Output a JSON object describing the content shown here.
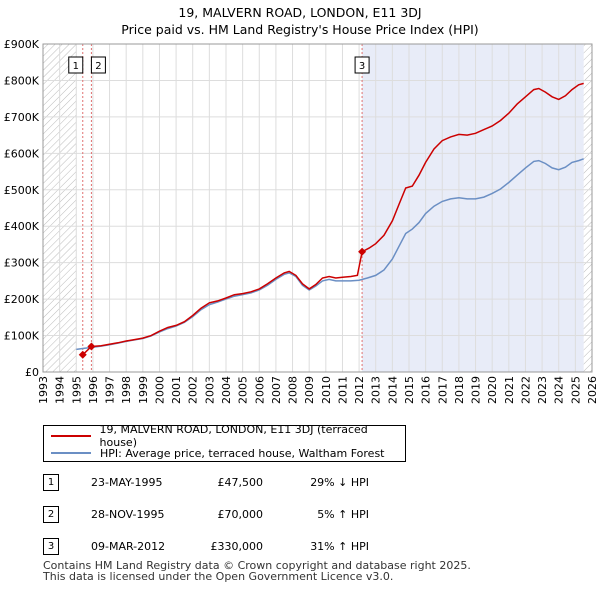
{
  "title_line1": "19, MALVERN ROAD, LONDON, E11 3DJ",
  "title_line2": "Price paid vs. HM Land Registry's House Price Index (HPI)",
  "colors": {
    "property": "#cc0000",
    "hpi": "#6b8fc4",
    "shade": "#e8ecf8",
    "hatch": "#bbbbbb",
    "marker_line": "#e07070"
  },
  "chart_data": {
    "type": "line",
    "xlim": [
      1993,
      2026
    ],
    "ylim": [
      0,
      900000
    ],
    "y_ticks": [
      0,
      100000,
      200000,
      300000,
      400000,
      500000,
      600000,
      700000,
      800000,
      900000
    ],
    "y_tick_labels": [
      "£0",
      "£100K",
      "£200K",
      "£300K",
      "£400K",
      "£500K",
      "£600K",
      "£700K",
      "£800K",
      "£900K"
    ],
    "x_ticks": [
      1993,
      1994,
      1995,
      1996,
      1997,
      1998,
      1999,
      2000,
      2001,
      2002,
      2003,
      2004,
      2005,
      2006,
      2007,
      2008,
      2009,
      2010,
      2011,
      2012,
      2013,
      2014,
      2015,
      2016,
      2017,
      2018,
      2019,
      2020,
      2021,
      2022,
      2023,
      2024,
      2025,
      2026
    ],
    "x_tick_labels": [
      "1993",
      "1994",
      "1995",
      "1996",
      "1997",
      "1998",
      "1999",
      "2000",
      "2001",
      "2002",
      "2003",
      "2004",
      "2005",
      "2006",
      "2007",
      "2008",
      "2009",
      "2010",
      "2011",
      "2012",
      "2013",
      "2014",
      "2015",
      "2016",
      "2017",
      "2018",
      "2019",
      "2020",
      "2021",
      "2022",
      "2023",
      "2024",
      "2025",
      "2026"
    ],
    "hatch_before": 1995.0,
    "hatch_after": 2025.5,
    "shaded_from": 2012.18,
    "series": [
      {
        "name": "19, MALVERN ROAD, LONDON, E11 3DJ (terraced house)",
        "points": [
          [
            1995.39,
            47500
          ],
          [
            1995.91,
            70000
          ],
          [
            1996.5,
            72000
          ],
          [
            1997,
            76000
          ],
          [
            1997.5,
            80000
          ],
          [
            1998,
            85000
          ],
          [
            1998.5,
            89000
          ],
          [
            1999,
            93000
          ],
          [
            1999.5,
            100000
          ],
          [
            2000,
            112000
          ],
          [
            2000.5,
            122000
          ],
          [
            2001,
            128000
          ],
          [
            2001.5,
            138000
          ],
          [
            2002,
            155000
          ],
          [
            2002.5,
            175000
          ],
          [
            2003,
            190000
          ],
          [
            2003.5,
            195000
          ],
          [
            2004,
            203000
          ],
          [
            2004.5,
            212000
          ],
          [
            2005,
            215000
          ],
          [
            2005.5,
            220000
          ],
          [
            2006,
            228000
          ],
          [
            2006.5,
            242000
          ],
          [
            2007,
            258000
          ],
          [
            2007.5,
            272000
          ],
          [
            2007.8,
            276000
          ],
          [
            2008.2,
            265000
          ],
          [
            2008.6,
            242000
          ],
          [
            2009,
            228000
          ],
          [
            2009.4,
            240000
          ],
          [
            2009.8,
            258000
          ],
          [
            2010.2,
            262000
          ],
          [
            2010.6,
            258000
          ],
          [
            2011,
            260000
          ],
          [
            2011.5,
            262000
          ],
          [
            2011.9,
            265000
          ],
          [
            2012.18,
            330000
          ],
          [
            2012.6,
            340000
          ],
          [
            2013,
            352000
          ],
          [
            2013.5,
            375000
          ],
          [
            2014,
            415000
          ],
          [
            2014.4,
            460000
          ],
          [
            2014.8,
            505000
          ],
          [
            2015.2,
            510000
          ],
          [
            2015.6,
            540000
          ],
          [
            2016,
            575000
          ],
          [
            2016.5,
            612000
          ],
          [
            2017,
            635000
          ],
          [
            2017.5,
            645000
          ],
          [
            2018,
            652000
          ],
          [
            2018.5,
            650000
          ],
          [
            2019,
            655000
          ],
          [
            2019.5,
            665000
          ],
          [
            2020,
            675000
          ],
          [
            2020.5,
            690000
          ],
          [
            2021,
            710000
          ],
          [
            2021.5,
            735000
          ],
          [
            2022,
            755000
          ],
          [
            2022.5,
            775000
          ],
          [
            2022.8,
            778000
          ],
          [
            2023.2,
            768000
          ],
          [
            2023.6,
            755000
          ],
          [
            2024,
            748000
          ],
          [
            2024.4,
            758000
          ],
          [
            2024.8,
            775000
          ],
          [
            2025.2,
            788000
          ],
          [
            2025.5,
            792000
          ]
        ]
      },
      {
        "name": "HPI: Average price, terraced house, Waltham Forest",
        "points": [
          [
            1995,
            62000
          ],
          [
            1995.5,
            65000
          ],
          [
            1996,
            68000
          ],
          [
            1996.5,
            71000
          ],
          [
            1997,
            75000
          ],
          [
            1997.5,
            79000
          ],
          [
            1998,
            84000
          ],
          [
            1998.5,
            88000
          ],
          [
            1999,
            92000
          ],
          [
            1999.5,
            99000
          ],
          [
            2000,
            110000
          ],
          [
            2000.5,
            119000
          ],
          [
            2001,
            126000
          ],
          [
            2001.5,
            136000
          ],
          [
            2002,
            152000
          ],
          [
            2002.5,
            171000
          ],
          [
            2003,
            185000
          ],
          [
            2003.5,
            192000
          ],
          [
            2004,
            200000
          ],
          [
            2004.5,
            208000
          ],
          [
            2005,
            212000
          ],
          [
            2005.5,
            217000
          ],
          [
            2006,
            225000
          ],
          [
            2006.5,
            238000
          ],
          [
            2007,
            254000
          ],
          [
            2007.5,
            268000
          ],
          [
            2007.8,
            272000
          ],
          [
            2008.2,
            262000
          ],
          [
            2008.6,
            238000
          ],
          [
            2009,
            225000
          ],
          [
            2009.4,
            236000
          ],
          [
            2009.8,
            250000
          ],
          [
            2010.2,
            254000
          ],
          [
            2010.6,
            250000
          ],
          [
            2011,
            250000
          ],
          [
            2011.5,
            250000
          ],
          [
            2012,
            252000
          ],
          [
            2012.5,
            258000
          ],
          [
            2013,
            265000
          ],
          [
            2013.5,
            280000
          ],
          [
            2014,
            310000
          ],
          [
            2014.4,
            345000
          ],
          [
            2014.8,
            380000
          ],
          [
            2015.2,
            392000
          ],
          [
            2015.6,
            410000
          ],
          [
            2016,
            435000
          ],
          [
            2016.5,
            455000
          ],
          [
            2017,
            468000
          ],
          [
            2017.5,
            475000
          ],
          [
            2018,
            478000
          ],
          [
            2018.5,
            475000
          ],
          [
            2019,
            475000
          ],
          [
            2019.5,
            480000
          ],
          [
            2020,
            490000
          ],
          [
            2020.5,
            502000
          ],
          [
            2021,
            520000
          ],
          [
            2021.5,
            540000
          ],
          [
            2022,
            560000
          ],
          [
            2022.5,
            578000
          ],
          [
            2022.8,
            580000
          ],
          [
            2023.2,
            572000
          ],
          [
            2023.6,
            560000
          ],
          [
            2024,
            555000
          ],
          [
            2024.4,
            562000
          ],
          [
            2024.8,
            575000
          ],
          [
            2025.2,
            580000
          ],
          [
            2025.5,
            585000
          ]
        ]
      }
    ],
    "sales": [
      {
        "id": "1",
        "date_value": 1995.39,
        "price": 47500
      },
      {
        "id": "2",
        "date_value": 1995.91,
        "price": 70000
      },
      {
        "id": "3",
        "date_value": 2012.18,
        "price": 330000
      }
    ]
  },
  "legend": {
    "property_label": "19, MALVERN ROAD, LONDON, E11 3DJ (terraced house)",
    "hpi_label": "HPI: Average price, terraced house, Waltham Forest"
  },
  "sales_table": [
    {
      "num": "1",
      "date": "23-MAY-1995",
      "price": "£47,500",
      "hpi": "29% ↓ HPI"
    },
    {
      "num": "2",
      "date": "28-NOV-1995",
      "price": "£70,000",
      "hpi": "5% ↑ HPI"
    },
    {
      "num": "3",
      "date": "09-MAR-2012",
      "price": "£330,000",
      "hpi": "31% ↑ HPI"
    }
  ],
  "footer": {
    "line1": "Contains HM Land Registry data © Crown copyright and database right 2025.",
    "line2": "This data is licensed under the Open Government Licence v3.0."
  }
}
